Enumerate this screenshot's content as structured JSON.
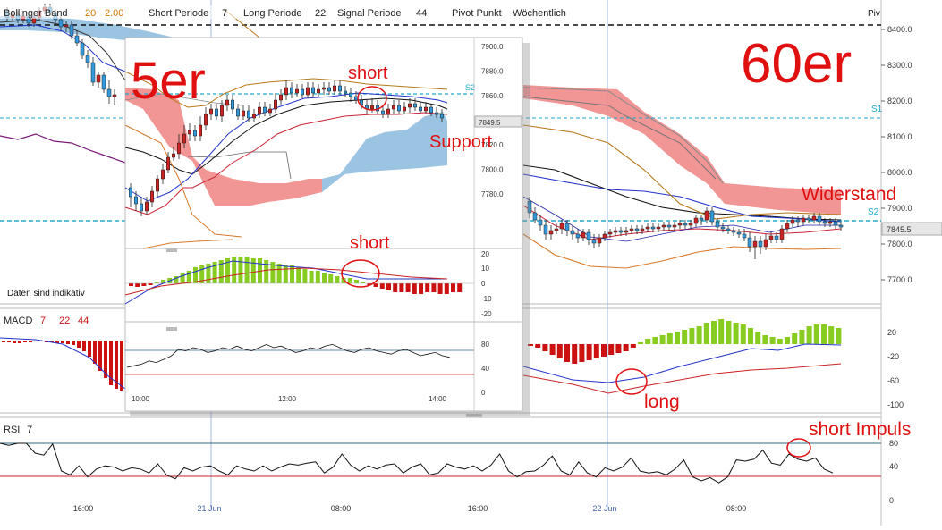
{
  "header": {
    "bollinger_name": "Bollinger Band",
    "bollinger_p1": "20",
    "bollinger_p2": "2.00",
    "short": "Short Periode",
    "short_val": "7",
    "long": "Long Periode",
    "long_val": "22",
    "signal": "Signal Periode",
    "signal_val": "44",
    "pivot": "Pivot Punkt",
    "pivot_period": "Wöchentlich",
    "piv_corner": "Piv"
  },
  "main": {
    "price_ticks": [
      "8400.0",
      "8300.0",
      "8200.0",
      "8100.0",
      "8000.0",
      "7900.0",
      "7800.0",
      "7700.0"
    ],
    "price_values": [
      8400,
      8300,
      8200,
      8100,
      8000,
      7900,
      7800,
      7700
    ],
    "current_price": "7845.5",
    "s1_label": "S1",
    "s2_label": "S2",
    "notice": "Daten sind indikativ",
    "title_overlay": "60er",
    "annotation_resistance": "Widerstand",
    "annotation_long": "long",
    "annotation_short_impulse": "short Impuls"
  },
  "macd_panel": {
    "title": "MACD",
    "p1": "7",
    "p2": "22",
    "p3": "44",
    "ticks": [
      "20",
      "-20",
      "-60",
      "-100"
    ]
  },
  "rsi_panel": {
    "title": "RSI",
    "period": "7",
    "ticks": [
      "80",
      "40",
      "0"
    ]
  },
  "x_axis": {
    "labels": [
      "16:00",
      "21 Jun",
      "08:00",
      "16:00",
      "22 Jun",
      "08:00"
    ]
  },
  "inset": {
    "title_overlay": "5er",
    "price_ticks": [
      "7900.0",
      "7880.0",
      "7860.0",
      "7840.0",
      "7820.0",
      "7800.0",
      "7780.0"
    ],
    "price_values": [
      7900,
      7880,
      7860,
      7840,
      7820,
      7800,
      7780
    ],
    "current_price": "7849.5",
    "s2_label": "S2",
    "annotation_short": "short",
    "annotation_support": "Support",
    "annotation_macd_short": "short",
    "macd_ticks": [
      "20",
      "10",
      "0",
      "-10",
      "-20"
    ],
    "rsi_ticks": [
      "80",
      "40",
      "0"
    ],
    "x_labels": [
      "10:00",
      "12:00",
      "14:00"
    ]
  },
  "colors": {
    "up_candle": "#3399dd",
    "down_candle": "#cc2222",
    "cloud_red": "#f08a8a",
    "cloud_blue": "#8ab8dd",
    "pivot_line": "#22aacc",
    "histogram_up": "#88cc22",
    "histogram_down": "#cc1111",
    "annotation": "#e01010"
  },
  "chart_data": [
    {
      "type": "line",
      "title": "60er",
      "ylim": [
        7650,
        8450
      ],
      "ylabel": "",
      "xlabel": "",
      "x": [
        "16:00",
        "21 Jun",
        "08:00",
        "16:00",
        "22 Jun",
        "08:00"
      ],
      "series": [],
      "current": 7845.5
    },
    {
      "type": "line",
      "title": "5er",
      "ylim": [
        7770,
        7905
      ],
      "x": [
        "10:00",
        "12:00",
        "14:00"
      ],
      "series": [],
      "current": 7849.5
    }
  ]
}
